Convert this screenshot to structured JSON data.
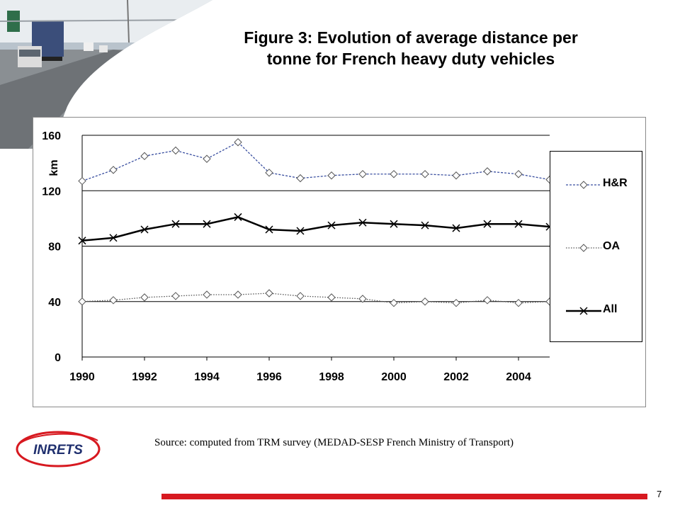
{
  "slide": {
    "title_line1": "Figure 3: Evolution of average distance per",
    "title_line2": "tonne for French heavy duty vehicles",
    "source": "Source: computed from TRM survey (MEDAD-SESP French Ministry of  Transport)",
    "page_number": "7",
    "logo_text": "INRETS",
    "accent_color": "#d71920"
  },
  "chart_data": {
    "type": "line",
    "ylabel": "km",
    "ylim": [
      0,
      160
    ],
    "yticks": [
      0,
      40,
      80,
      120,
      160
    ],
    "xlim": [
      1990,
      2005
    ],
    "xticks": [
      1990,
      1992,
      1994,
      1996,
      1998,
      2000,
      2002,
      2004
    ],
    "x": [
      1990,
      1991,
      1992,
      1993,
      1994,
      1995,
      1996,
      1997,
      1998,
      1999,
      2000,
      2001,
      2002,
      2003,
      2004,
      2005
    ],
    "grid": "horizontal",
    "legend_position": "right",
    "series": [
      {
        "name": "H&R",
        "marker": "diamond",
        "style": "dashed",
        "color": "#3a4fa0",
        "values": [
          127,
          135,
          145,
          149,
          143,
          155,
          133,
          129,
          131,
          132,
          132,
          132,
          131,
          134,
          132,
          128
        ]
      },
      {
        "name": "OA",
        "marker": "diamond",
        "style": "dotted",
        "color": "#555555",
        "values": [
          40,
          41,
          43,
          44,
          45,
          45,
          46,
          44,
          43,
          42,
          39,
          40,
          39,
          41,
          39,
          40
        ]
      },
      {
        "name": "All",
        "marker": "x",
        "style": "solid",
        "color": "#000000",
        "values": [
          84,
          86,
          92,
          96,
          96,
          101,
          92,
          91,
          95,
          97,
          96,
          95,
          93,
          96,
          96,
          94
        ]
      }
    ]
  }
}
